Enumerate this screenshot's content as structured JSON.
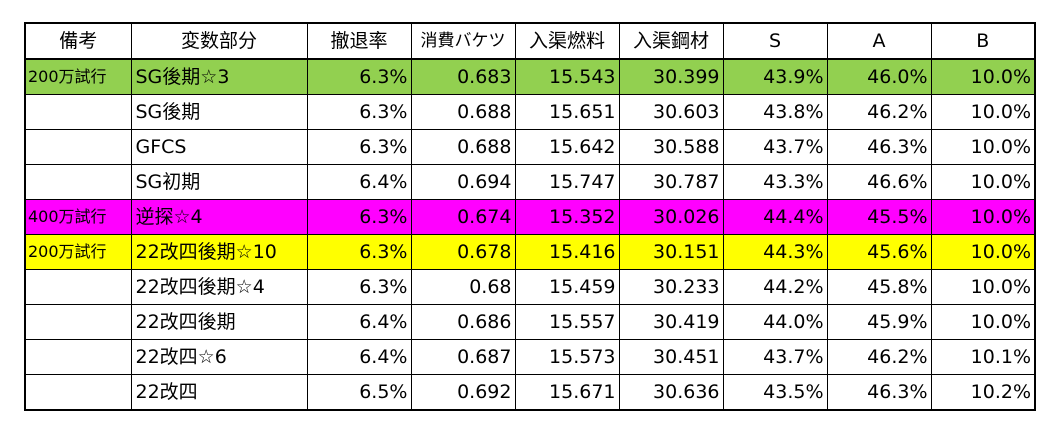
{
  "headers": [
    "備考",
    "変数部分",
    "撤退率",
    "消費バケツ",
    "入渠燃料",
    "入渠鋼材",
    "S",
    "A",
    "B"
  ],
  "rows": [
    {
      "note": "200万試行",
      "variant": "SG後期☆3",
      "retreat": "6.3%",
      "bucket": "0.683",
      "fuel": "15.543",
      "steel": "30.399",
      "s": "43.9%",
      "a": "46.0%",
      "b": "10.0%",
      "highlight": "green"
    },
    {
      "note": "",
      "variant": "SG後期",
      "retreat": "6.3%",
      "bucket": "0.688",
      "fuel": "15.651",
      "steel": "30.603",
      "s": "43.8%",
      "a": "46.2%",
      "b": "10.0%",
      "highlight": "none"
    },
    {
      "note": "",
      "variant": "GFCS",
      "retreat": "6.3%",
      "bucket": "0.688",
      "fuel": "15.642",
      "steel": "30.588",
      "s": "43.7%",
      "a": "46.3%",
      "b": "10.0%",
      "highlight": "none"
    },
    {
      "note": "",
      "variant": "SG初期",
      "retreat": "6.4%",
      "bucket": "0.694",
      "fuel": "15.747",
      "steel": "30.787",
      "s": "43.3%",
      "a": "46.6%",
      "b": "10.0%",
      "highlight": "none"
    },
    {
      "note": "400万試行",
      "variant": "逆探☆4",
      "retreat": "6.3%",
      "bucket": "0.674",
      "fuel": "15.352",
      "steel": "30.026",
      "s": "44.4%",
      "a": "45.5%",
      "b": "10.0%",
      "highlight": "magenta"
    },
    {
      "note": "200万試行",
      "variant": "22改四後期☆10",
      "retreat": "6.3%",
      "bucket": "0.678",
      "fuel": "15.416",
      "steel": "30.151",
      "s": "44.3%",
      "a": "45.6%",
      "b": "10.0%",
      "highlight": "yellow"
    },
    {
      "note": "",
      "variant": "22改四後期☆4",
      "retreat": "6.3%",
      "bucket": "0.68",
      "fuel": "15.459",
      "steel": "30.233",
      "s": "44.2%",
      "a": "45.8%",
      "b": "10.0%",
      "highlight": "none"
    },
    {
      "note": "",
      "variant": "22改四後期",
      "retreat": "6.4%",
      "bucket": "0.686",
      "fuel": "15.557",
      "steel": "30.419",
      "s": "44.0%",
      "a": "45.9%",
      "b": "10.0%",
      "highlight": "none"
    },
    {
      "note": "",
      "variant": "22改四☆6",
      "retreat": "6.4%",
      "bucket": "0.687",
      "fuel": "15.573",
      "steel": "30.451",
      "s": "43.7%",
      "a": "46.2%",
      "b": "10.1%",
      "highlight": "none"
    },
    {
      "note": "",
      "variant": "22改四",
      "retreat": "6.5%",
      "bucket": "0.692",
      "fuel": "15.671",
      "steel": "30.636",
      "s": "43.5%",
      "a": "46.3%",
      "b": "10.2%",
      "highlight": "none"
    }
  ],
  "colors": {
    "green": "#92d050",
    "magenta": "#ff00ff",
    "yellow": "#ffff00"
  }
}
